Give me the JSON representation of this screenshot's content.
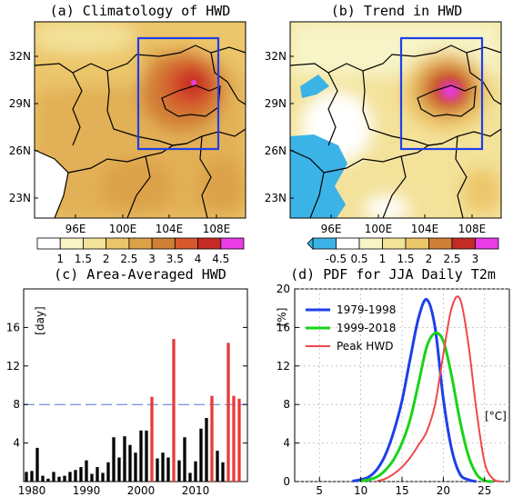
{
  "panels": {
    "a": {
      "title": "(a) Climatology of HWD",
      "lat_labels": [
        "32N",
        "29N",
        "26N",
        "23N"
      ],
      "lon_labels": [
        "96E",
        "100E",
        "104E",
        "108E"
      ],
      "colorbar": {
        "labels": [
          "1",
          "1.5",
          "2",
          "2.5",
          "3",
          "3.5",
          "4",
          "4.5"
        ],
        "colors": [
          "#ffffff",
          "#f7f4c8",
          "#f3e29a",
          "#ecc66a",
          "#dca24a",
          "#d07f36",
          "#d8582e",
          "#c52a24",
          "#ea3ce6"
        ]
      }
    },
    "b": {
      "title": "(b) Trend in HWD",
      "lat_labels": [
        "32N",
        "29N",
        "26N",
        "23N"
      ],
      "lon_labels": [
        "96E",
        "100E",
        "104E",
        "108E"
      ],
      "colorbar": {
        "labels": [
          "-0.5",
          "0.5",
          "1",
          "1.5",
          "2",
          "2.5",
          "3"
        ],
        "colors": [
          "#3bb3e6",
          "#ffffff",
          "#f7f4c8",
          "#f3e29a",
          "#ecc66a",
          "#d07f36",
          "#c52a24",
          "#ea3ce6"
        ]
      }
    },
    "c": {
      "title": "(c) Area-Averaged HWD",
      "unit_label": "[day]",
      "threshold_color": "#4a78d6",
      "bar_colors": {
        "normal": "#000000",
        "peak": "#e83a3a"
      }
    },
    "d": {
      "title": "(d) PDF for JJA Daily T2m",
      "y_unit": "[%]",
      "x_unit": "[°C]",
      "legend": [
        "1979-1998",
        "1999-2018",
        "Peak HWD"
      ],
      "colors": [
        "#1f3fe8",
        "#19d419",
        "#f0474a"
      ]
    }
  },
  "chart_data": [
    {
      "type": "heatmap",
      "title": "(a) Climatology of HWD",
      "xlabel": "",
      "ylabel": "",
      "x_ticks": [
        "96E",
        "100E",
        "104E",
        "108E"
      ],
      "y_ticks": [
        "32N",
        "29N",
        "26N",
        "23N"
      ],
      "xlim": [
        92,
        110
      ],
      "ylim": [
        21.5,
        34
      ],
      "colorbar_levels": [
        1,
        1.5,
        2,
        2.5,
        3,
        3.5,
        4,
        4.5
      ],
      "box_region": {
        "lon": [
          102.3,
          108.3
        ],
        "lat": [
          26.1,
          33.1
        ]
      },
      "peak_value_approx": 4.5
    },
    {
      "type": "heatmap",
      "title": "(b) Trend in HWD",
      "xlabel": "",
      "ylabel": "",
      "x_ticks": [
        "96E",
        "100E",
        "104E",
        "108E"
      ],
      "y_ticks": [
        "32N",
        "29N",
        "26N",
        "23N"
      ],
      "xlim": [
        92,
        110
      ],
      "ylim": [
        21.5,
        34
      ],
      "colorbar_levels": [
        -0.5,
        0.5,
        1,
        1.5,
        2,
        2.5,
        3
      ],
      "box_region": {
        "lon": [
          102.3,
          108.3
        ],
        "lat": [
          26.1,
          33.1
        ]
      },
      "peak_value_approx": 3
    },
    {
      "type": "bar",
      "title": "(c) Area-Averaged HWD",
      "ylabel": "[day]",
      "xlabel": "",
      "x_ticks": [
        "1980",
        "1990",
        "2000",
        "2010"
      ],
      "y_ticks": [
        "4",
        "8",
        "12",
        "16"
      ],
      "ylim": [
        0,
        20
      ],
      "xlim": [
        1978.5,
        2019.5
      ],
      "threshold": 8,
      "years": [
        1979,
        1980,
        1981,
        1982,
        1983,
        1984,
        1985,
        1986,
        1987,
        1988,
        1989,
        1990,
        1991,
        1992,
        1993,
        1994,
        1995,
        1996,
        1997,
        1998,
        1999,
        2000,
        2001,
        2002,
        2003,
        2004,
        2005,
        2006,
        2007,
        2008,
        2009,
        2010,
        2011,
        2012,
        2013,
        2014,
        2015,
        2016,
        2017,
        2018
      ],
      "values": [
        1.0,
        1.1,
        3.5,
        0.6,
        0.3,
        1.0,
        0.5,
        0.6,
        1.0,
        1.2,
        1.5,
        2.2,
        0.8,
        1.5,
        0.9,
        2.0,
        4.6,
        2.5,
        4.7,
        3.8,
        3.0,
        5.3,
        5.3,
        8.8,
        2.4,
        3.0,
        2.5,
        14.8,
        2.2,
        4.6,
        0.9,
        2.1,
        5.5,
        6.6,
        8.9,
        3.2,
        2.0,
        14.4,
        8.9,
        8.6
      ],
      "peak_years": [
        2002,
        2006,
        2013,
        2016,
        2017,
        2018
      ]
    },
    {
      "type": "line",
      "title": "(d) PDF for JJA Daily T2m",
      "ylabel": "[%]",
      "xlabel": "[°C]",
      "x_ticks": [
        "5",
        "10",
        "15",
        "20",
        "25"
      ],
      "y_ticks": [
        "0",
        "4",
        "8",
        "12",
        "16",
        "20"
      ],
      "xlim": [
        2,
        28
      ],
      "ylim": [
        0,
        20
      ],
      "series": [
        {
          "name": "1979-1998",
          "x": [
            9,
            10,
            11,
            12,
            13,
            14,
            15,
            16,
            17,
            18,
            19,
            20,
            21,
            22,
            23,
            24
          ],
          "values": [
            0.05,
            0.2,
            0.5,
            1.3,
            2.8,
            5.2,
            8.4,
            12.8,
            17.0,
            18.9,
            16.0,
            8.6,
            3.4,
            0.8,
            0.2,
            0.0
          ]
        },
        {
          "name": "1999-2018",
          "x": [
            10,
            11,
            12,
            13,
            14,
            15,
            16,
            17,
            18,
            19,
            20,
            21,
            22,
            23,
            24,
            25,
            26
          ],
          "values": [
            0.05,
            0.2,
            0.5,
            1.2,
            2.3,
            4.0,
            6.5,
            10.2,
            14.0,
            15.4,
            14.6,
            11.0,
            6.4,
            2.8,
            0.8,
            0.1,
            0.0
          ]
        },
        {
          "name": "Peak HWD",
          "x": [
            12,
            13,
            14,
            15,
            16,
            17,
            18,
            19,
            20,
            21,
            22,
            23,
            24,
            25,
            26,
            27
          ],
          "values": [
            0.05,
            0.3,
            0.8,
            1.5,
            2.5,
            3.8,
            5.2,
            8.0,
            13.2,
            18.0,
            19.0,
            14.5,
            7.5,
            2.0,
            0.3,
            0.0
          ]
        }
      ]
    }
  ]
}
